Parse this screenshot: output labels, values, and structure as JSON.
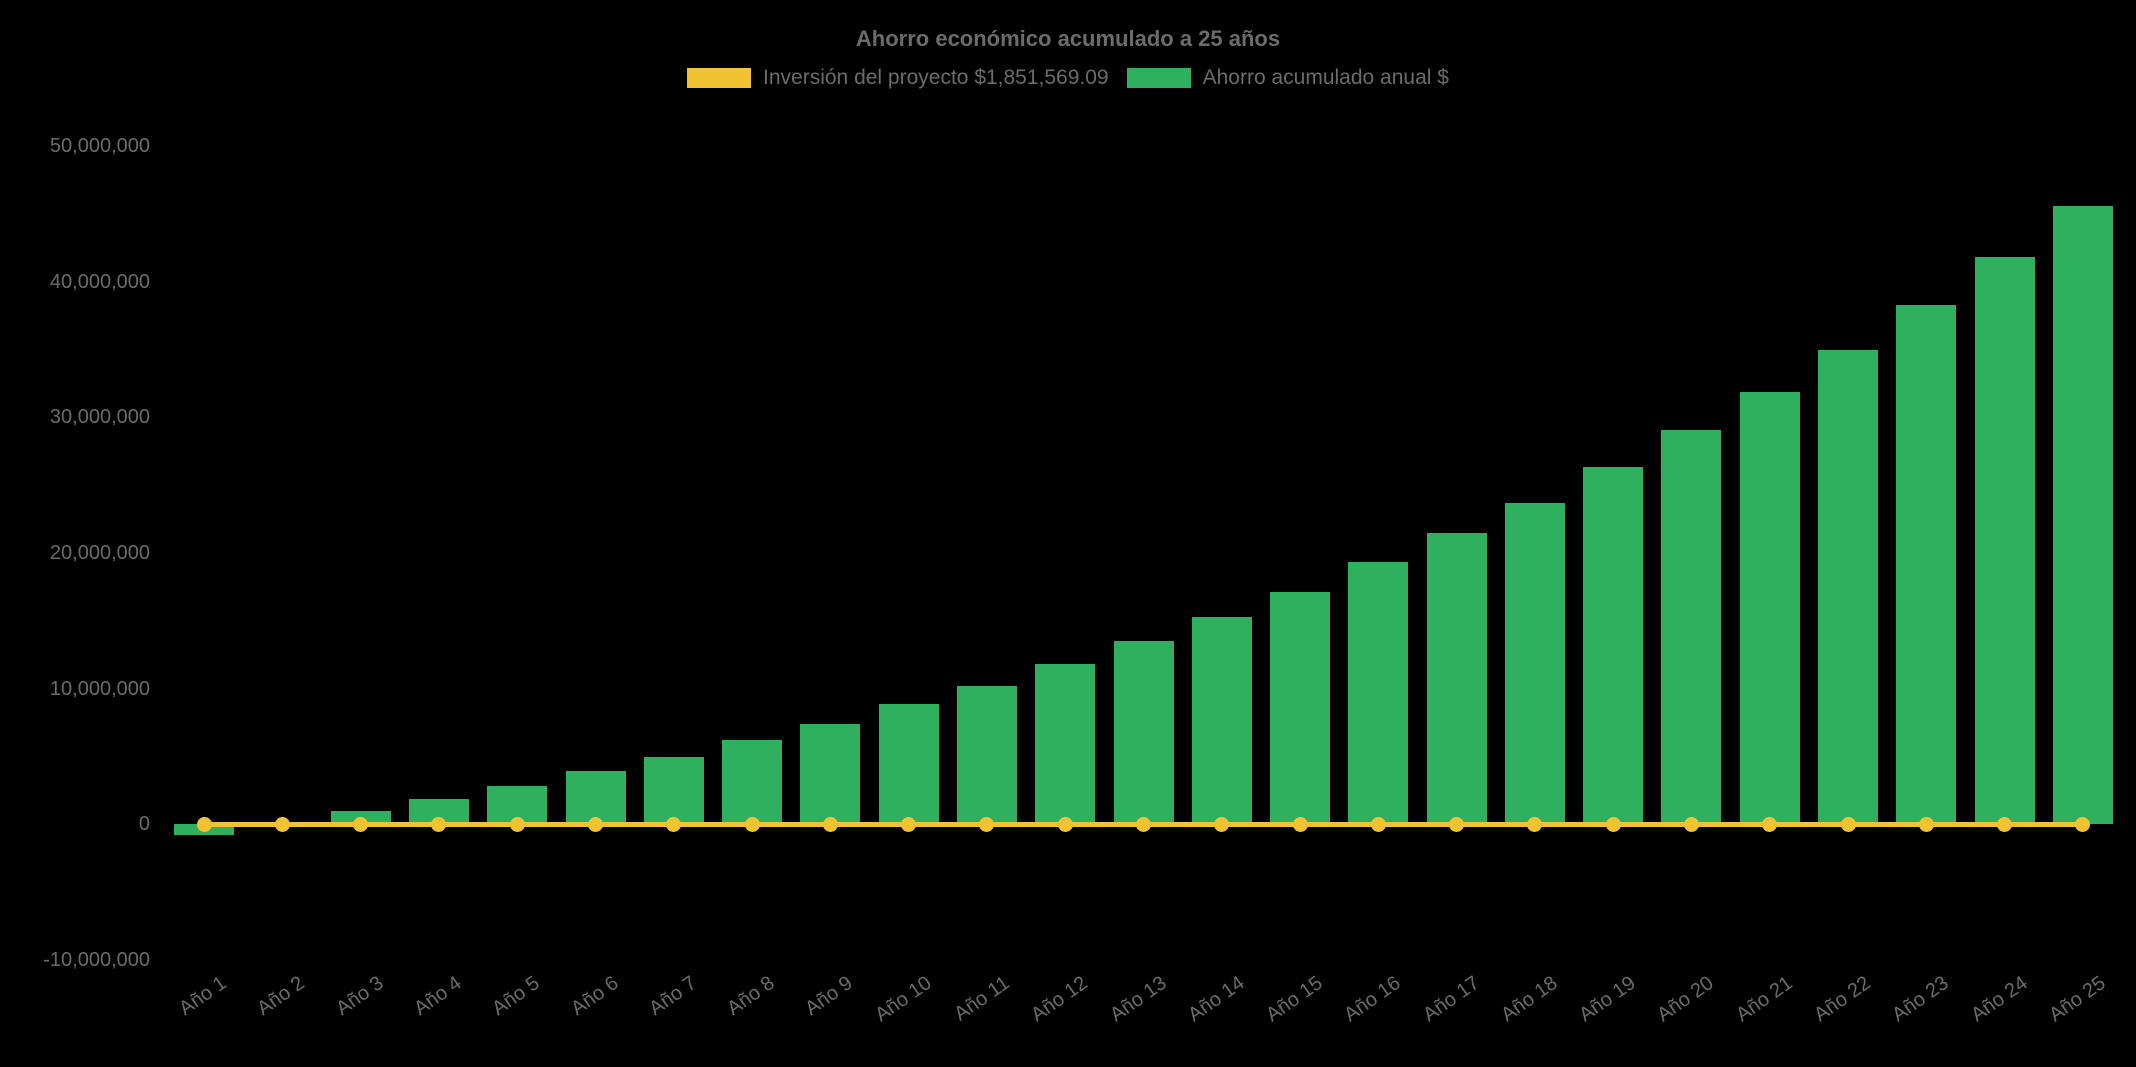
{
  "title": "Ahorro económico acumulado a 25 años",
  "colors": {
    "background": "#000000",
    "text": "#6b6b6b",
    "bar_green": "#2eb05e",
    "line_yellow": "#f1c232"
  },
  "legend": {
    "items": [
      {
        "label": "Inversión del proyecto $1,851,569.09",
        "color": "#f1c232"
      },
      {
        "label": "Ahorro acumulado anual $",
        "color": "#2eb05e"
      }
    ]
  },
  "chart_data": {
    "type": "bar",
    "title": "Ahorro económico acumulado a 25 años",
    "categories": [
      "Año 1",
      "Año 2",
      "Año 3",
      "Año 4",
      "Año 5",
      "Año 6",
      "Año 7",
      "Año 8",
      "Año 9",
      "Año 10",
      "Año 11",
      "Año 12",
      "Año 13",
      "Año 14",
      "Año 15",
      "Año 16",
      "Año 17",
      "Año 18",
      "Año 19",
      "Año 20",
      "Año 21",
      "Año 22",
      "Año 23",
      "Año 24",
      "Año 25"
    ],
    "series": [
      {
        "name": "Ahorro acumulado anual $",
        "type": "bar",
        "color": "#2eb05e",
        "values": [
          -800000,
          200000,
          1000000,
          1900000,
          2850000,
          3900000,
          5000000,
          6200000,
          7400000,
          8900000,
          10200000,
          11850000,
          13550000,
          15250000,
          17150000,
          19350000,
          21450000,
          23700000,
          26350000,
          29100000,
          31900000,
          35000000,
          38300000,
          41800000,
          45550000
        ]
      },
      {
        "name": "Inversión del proyecto $1,851,569.09",
        "type": "line",
        "color": "#f1c232",
        "investment_amount": 1851569.09,
        "plotted_value": 0,
        "point_style": "circle"
      }
    ],
    "ylim": [
      -10000000,
      50000000
    ],
    "y_ticks": [
      "50,000,000",
      "40,000,000",
      "30,000,000",
      "20,000,000",
      "10,000,000",
      "0",
      "-10,000,000"
    ],
    "y_tick_values": [
      50000000,
      40000000,
      30000000,
      20000000,
      10000000,
      0,
      -10000000
    ],
    "grid": false,
    "legend_position": "top",
    "x_label_rotation_deg": -35
  }
}
